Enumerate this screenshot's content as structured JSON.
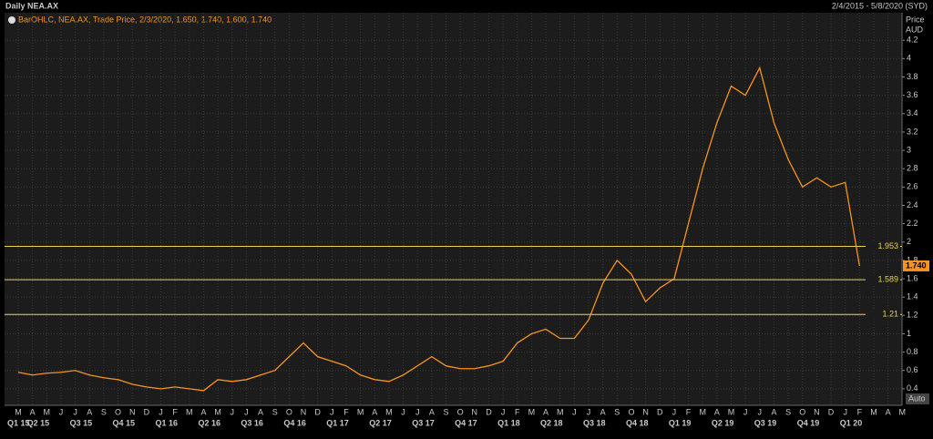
{
  "chart_data": {
    "type": "line",
    "title": "Daily NEA.AX",
    "date_range": "2/4/2015 - 5/8/2020 (SYD)",
    "legend": "BarOHLC, NEA.AX, Trade Price, 2/3/2020, 1.650, 1.740, 1.600, 1.740",
    "y_axis_label": "Price",
    "y_axis_unit": "AUD",
    "scale_button": "Auto",
    "categories": [
      "M",
      "A",
      "M",
      "J",
      "J",
      "A",
      "S",
      "O",
      "N",
      "D",
      "J",
      "F",
      "M",
      "A",
      "M",
      "J",
      "J",
      "A",
      "S",
      "O",
      "N",
      "D",
      "J",
      "F",
      "M",
      "A",
      "M",
      "J",
      "J",
      "A",
      "S",
      "O",
      "N",
      "D",
      "J",
      "F",
      "M",
      "A",
      "M",
      "J",
      "J",
      "A",
      "S",
      "O",
      "N",
      "D",
      "J",
      "F",
      "M",
      "A",
      "M",
      "J",
      "J",
      "A",
      "S",
      "O",
      "N",
      "D",
      "J",
      "F",
      "M",
      "A",
      "M"
    ],
    "quarter_labels": [
      "Q1 15",
      "Q2 15",
      "Q3 15",
      "Q4 15",
      "Q1 16",
      "Q2 16",
      "Q3 16",
      "Q4 16",
      "Q1 17",
      "Q2 17",
      "Q3 17",
      "Q4 17",
      "Q1 18",
      "Q2 18",
      "Q3 18",
      "Q4 18",
      "Q1 19",
      "Q2 19",
      "Q3 19",
      "Q4 19",
      "Q1 20"
    ],
    "series": [
      {
        "name": "NEA.AX",
        "color": "#f7941d",
        "values": [
          0.58,
          0.55,
          0.57,
          0.58,
          0.6,
          0.55,
          0.52,
          0.5,
          0.45,
          0.42,
          0.4,
          0.42,
          0.4,
          0.38,
          0.5,
          0.48,
          0.5,
          0.55,
          0.6,
          0.75,
          0.9,
          0.75,
          0.7,
          0.65,
          0.55,
          0.5,
          0.48,
          0.55,
          0.65,
          0.75,
          0.65,
          0.62,
          0.62,
          0.65,
          0.7,
          0.9,
          1.0,
          1.05,
          0.95,
          0.95,
          1.15,
          1.55,
          1.8,
          1.65,
          1.35,
          1.5,
          1.6,
          2.2,
          2.8,
          3.3,
          3.7,
          3.6,
          3.9,
          3.3,
          2.9,
          2.6,
          2.7,
          2.6,
          2.65,
          1.74,
          null,
          null,
          null
        ]
      }
    ],
    "ylim": [
      0.22,
      4.5
    ],
    "yticks": [
      0.4,
      0.6,
      0.8,
      1,
      1.2,
      1.4,
      1.6,
      1.8,
      2,
      2.2,
      2.4,
      2.6,
      2.8,
      3,
      3.2,
      3.4,
      3.6,
      3.8,
      4,
      4.2
    ],
    "levels": [
      {
        "value": 1.953
      },
      {
        "value": 1.589
      },
      {
        "value": 1.21
      }
    ],
    "level_color": "#e8d34a",
    "last_price": {
      "value": 1.74,
      "label": "1.740"
    },
    "grid": true
  }
}
